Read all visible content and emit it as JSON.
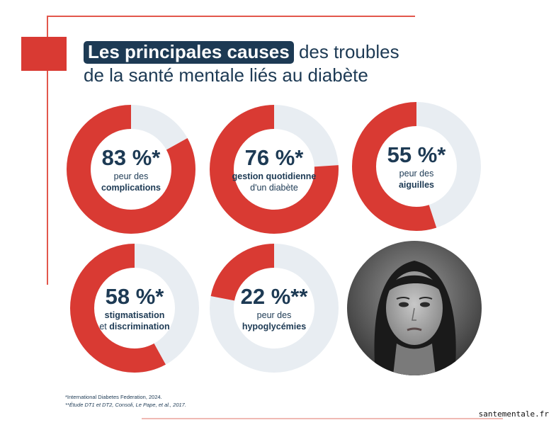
{
  "title": {
    "highlight": "Les principales causes",
    "rest_line1": " des troubles",
    "line2": "de la santé mentale liés au diabète"
  },
  "stats": [
    {
      "percent": "83 %*",
      "line1": "peur des",
      "line2": "complications",
      "bold_line1": false,
      "bold_line2": true,
      "fraction": 0.83
    },
    {
      "percent": "76 %*",
      "line1": "gestion quotidienne",
      "line2": "d'un diabète",
      "bold_line1": true,
      "bold_line2": false,
      "fraction": 0.76
    },
    {
      "percent": "55 %*",
      "line1": "peur des",
      "line2": "aiguilles",
      "bold_line1": false,
      "bold_line2": true,
      "fraction": 0.55
    },
    {
      "percent": "58 %*",
      "line1": "stigmatisation",
      "line2_pre": "et ",
      "line2": "discrimination",
      "bold_line1": true,
      "bold_line2": true,
      "fraction": 0.58
    },
    {
      "percent": "22 %**",
      "line1": "peur des",
      "line2": "hypoglycémies",
      "bold_line1": false,
      "bold_line2": true,
      "fraction": 0.22
    }
  ],
  "footnotes": {
    "note1": "*International Diabetes Federation, 2024.",
    "note2": "**Étude DT1 et DT2, Consoli, Le Pape, et al., 2017."
  },
  "watermark": "santementale.fr",
  "colors": {
    "accent": "#d93a33",
    "track": "#e8edf2",
    "navy": "#1d3a54"
  },
  "photo_icon": "portrait-photo-icon"
}
